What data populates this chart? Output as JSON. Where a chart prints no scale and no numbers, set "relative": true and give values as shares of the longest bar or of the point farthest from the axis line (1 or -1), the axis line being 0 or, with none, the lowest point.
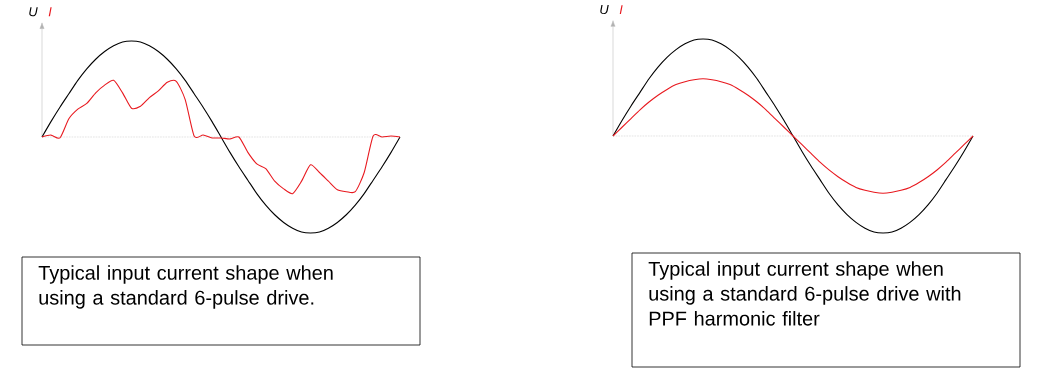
{
  "chart_data": [
    {
      "type": "line",
      "relative": true,
      "categories": [
        null,
        null,
        null,
        null,
        null,
        null,
        null,
        null,
        null,
        null,
        null,
        null,
        null,
        null,
        null,
        null,
        null,
        null,
        null,
        null,
        null,
        null,
        null,
        null,
        null,
        null,
        null,
        null,
        null,
        null,
        null,
        null,
        null,
        null,
        null,
        null,
        null,
        null,
        null,
        null,
        null
      ],
      "series": [
        {
          "name": "U",
          "color": "#000000",
          "values": [
            0,
            0.16,
            0.31,
            0.45,
            0.59,
            0.71,
            0.81,
            0.89,
            0.95,
            0.99,
            1,
            0.99,
            0.95,
            0.89,
            0.81,
            0.71,
            0.59,
            0.45,
            0.31,
            0.16,
            0,
            -0.16,
            -0.31,
            -0.45,
            -0.59,
            -0.71,
            -0.81,
            -0.89,
            -0.95,
            -0.99,
            -1,
            -0.99,
            -0.95,
            -0.89,
            -0.81,
            -0.71,
            -0.59,
            -0.45,
            -0.31,
            -0.16,
            0
          ]
        },
        {
          "name": "I",
          "color": "#e8191f",
          "values": [
            0,
            0.02,
            -0.01,
            0.19,
            0.29,
            0.35,
            0.46,
            0.54,
            0.59,
            0.46,
            0.3,
            0.32,
            0.41,
            0.48,
            0.57,
            0.58,
            0.39,
            0.01,
            0.02,
            -0.01,
            -0.01,
            -0.02,
            0,
            -0.16,
            -0.28,
            -0.33,
            -0.46,
            -0.54,
            -0.59,
            -0.46,
            -0.29,
            -0.37,
            -0.46,
            -0.55,
            -0.57,
            -0.57,
            -0.37,
            0.01,
            0,
            0.01,
            0
          ]
        }
      ],
      "ref_lines": [
        {
          "axis": "y",
          "value": 0,
          "color": "#b2b2b2",
          "line_style": "dotted"
        }
      ],
      "annotations": [
        "Typical input current shape when using a standard 6-pulse drive."
      ]
    },
    {
      "type": "line",
      "relative": true,
      "categories": [
        null,
        null,
        null,
        null,
        null,
        null,
        null,
        null,
        null,
        null,
        null,
        null,
        null,
        null,
        null,
        null,
        null,
        null,
        null,
        null,
        null,
        null,
        null,
        null,
        null,
        null,
        null,
        null,
        null,
        null,
        null,
        null,
        null,
        null,
        null,
        null,
        null,
        null,
        null,
        null,
        null
      ],
      "series": [
        {
          "name": "U",
          "color": "#000000",
          "values": [
            0,
            0.16,
            0.31,
            0.45,
            0.59,
            0.71,
            0.81,
            0.89,
            0.95,
            0.99,
            1,
            0.99,
            0.95,
            0.89,
            0.81,
            0.71,
            0.59,
            0.45,
            0.31,
            0.16,
            0,
            -0.16,
            -0.31,
            -0.45,
            -0.59,
            -0.71,
            -0.81,
            -0.89,
            -0.95,
            -0.99,
            -1,
            -0.99,
            -0.95,
            -0.89,
            -0.81,
            -0.71,
            -0.59,
            -0.45,
            -0.31,
            -0.16,
            0
          ]
        },
        {
          "name": "I",
          "color": "#e8191f",
          "values": [
            0,
            0.09,
            0.18,
            0.27,
            0.35,
            0.42,
            0.48,
            0.53,
            0.56,
            0.58,
            0.59,
            0.58,
            0.56,
            0.53,
            0.48,
            0.42,
            0.35,
            0.27,
            0.18,
            0.09,
            0,
            -0.09,
            -0.18,
            -0.27,
            -0.35,
            -0.42,
            -0.48,
            -0.53,
            -0.56,
            -0.58,
            -0.59,
            -0.58,
            -0.56,
            -0.53,
            -0.48,
            -0.42,
            -0.35,
            -0.27,
            -0.18,
            -0.09,
            0
          ]
        }
      ],
      "ref_lines": [
        {
          "axis": "y",
          "value": 0,
          "color": "#b2b2b2",
          "line_style": "dotted"
        }
      ],
      "annotations": [
        "Typical input current shape when using a standard 6-pulse drive with PPF harmonic filter"
      ]
    }
  ]
}
